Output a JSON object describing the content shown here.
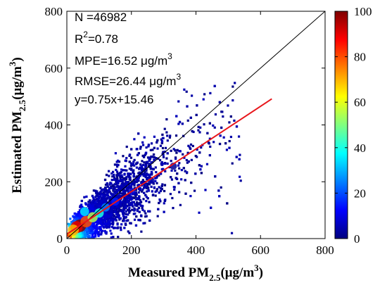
{
  "chart_data": {
    "type": "scatter",
    "title": "",
    "xlabel": "Measured PM",
    "xlabel_subscript": "2.5",
    "xlabel_unit": "(μg/m",
    "xlabel_unit_sup": "3",
    "xlabel_close": ")",
    "ylabel": "Estimated PM",
    "ylabel_subscript": "2.5",
    "ylabel_unit": "(μg/m",
    "ylabel_unit_sup": "3",
    "ylabel_close": ")",
    "xlim": [
      0,
      800
    ],
    "ylim": [
      0,
      800
    ],
    "xticks": [
      0,
      200,
      400,
      600,
      800
    ],
    "yticks": [
      0,
      200,
      400,
      600,
      800
    ],
    "grid": false,
    "stats": {
      "n": "N  =46982",
      "r2_prefix": "R",
      "r2_sup": "2",
      "r2_value": "=0.78",
      "mpe": "MPE=16.52 μg/m",
      "mpe_sup": "3",
      "rmse": "RMSE=26.44 μg/m",
      "rmse_sup": "3",
      "fit": "y=0.75x+15.46"
    },
    "one_to_one_line": {
      "color": "#000000",
      "from": [
        0,
        0
      ],
      "to": [
        800,
        800
      ]
    },
    "fit_line": {
      "slope": 0.75,
      "intercept": 15.46,
      "x_range": [
        0,
        635
      ],
      "color": "#e8161b"
    },
    "colorbar": {
      "min": 0,
      "max": 100,
      "ticks": [
        0,
        20,
        40,
        60,
        80,
        100
      ],
      "colors": [
        "#00007f",
        "#0000ff",
        "#0080ff",
        "#00ffff",
        "#80ff80",
        "#ffff00",
        "#ff8000",
        "#ff0000",
        "#7f0000"
      ]
    },
    "density_clusters": [
      {
        "x": 40,
        "y": 45,
        "density": 100
      },
      {
        "x": 30,
        "y": 40,
        "density": 90
      },
      {
        "x": 60,
        "y": 60,
        "density": 80
      },
      {
        "x": 20,
        "y": 30,
        "density": 70
      },
      {
        "x": 80,
        "y": 75,
        "density": 55
      },
      {
        "x": 100,
        "y": 90,
        "density": 40
      },
      {
        "x": 55,
        "y": 95,
        "density": 35
      },
      {
        "x": 120,
        "y": 110,
        "density": 25
      },
      {
        "x": 150,
        "y": 130,
        "density": 15
      },
      {
        "x": 200,
        "y": 165,
        "density": 8
      },
      {
        "x": 260,
        "y": 205,
        "density": 4
      },
      {
        "x": 330,
        "y": 255,
        "density": 2
      }
    ]
  }
}
